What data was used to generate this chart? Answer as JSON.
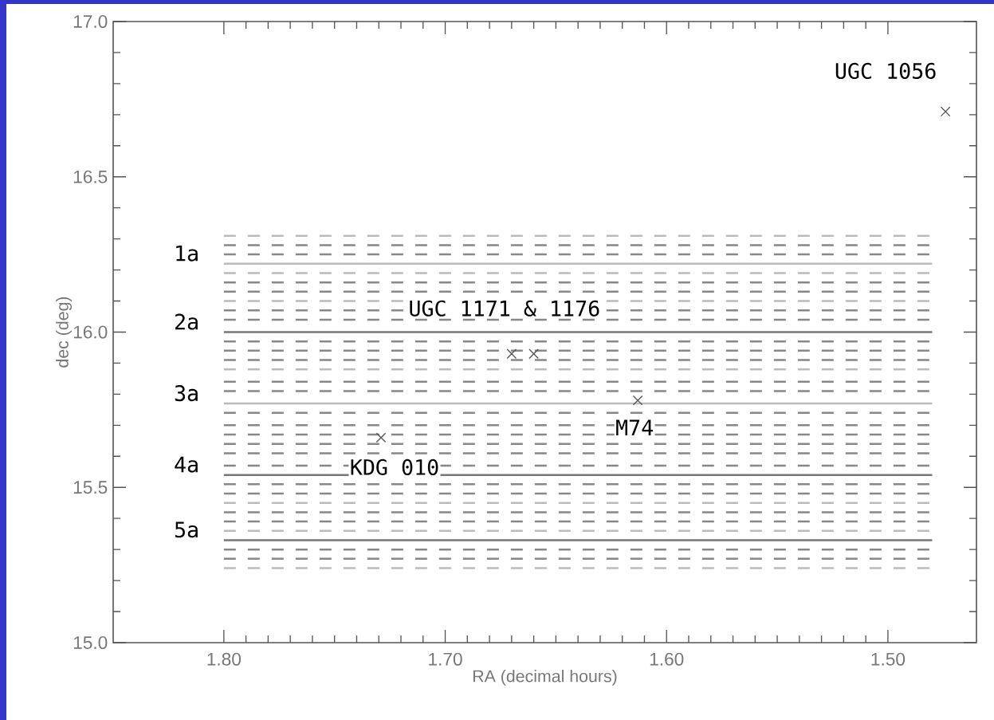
{
  "chart_data": {
    "type": "scatter",
    "xlabel": "RA (decimal hours)",
    "ylabel": "dec (deg)",
    "xlim": [
      1.85,
      1.46
    ],
    "ylim": [
      15.0,
      17.0
    ],
    "xticks": [
      {
        "value": 1.8,
        "label": "1.80"
      },
      {
        "value": 1.7,
        "label": "1.70"
      },
      {
        "value": 1.6,
        "label": "1.60"
      },
      {
        "value": 1.5,
        "label": "1.50"
      }
    ],
    "yticks": [
      {
        "value": 15.0,
        "label": "15.0"
      },
      {
        "value": 15.5,
        "label": "15.5"
      },
      {
        "value": 16.0,
        "label": "16.0"
      },
      {
        "value": 16.5,
        "label": "16.5"
      },
      {
        "value": 17.0,
        "label": "17.0"
      }
    ],
    "series": [
      {
        "marker": "cross",
        "color": "#555555",
        "x": [
          1.474,
          1.67,
          1.66,
          1.613,
          1.729
        ],
        "values": [
          16.71,
          15.93,
          15.93,
          15.78,
          15.66
        ]
      },
      {
        "type": "line",
        "name": "1a",
        "color": "#bbbbbb",
        "line_style": "solid",
        "x": [
          1.8,
          1.48
        ],
        "values": [
          16.22,
          16.22
        ]
      },
      {
        "type": "line",
        "name": "2a",
        "color": "#777777",
        "line_style": "solid",
        "x": [
          1.8,
          1.48
        ],
        "values": [
          16.0,
          16.0
        ]
      },
      {
        "type": "line",
        "name": "3a",
        "color": "#bbbbbb",
        "line_style": "solid",
        "x": [
          1.8,
          1.48
        ],
        "values": [
          15.77,
          15.77
        ]
      },
      {
        "type": "line",
        "name": "4a",
        "color": "#777777",
        "line_style": "solid",
        "x": [
          1.8,
          1.48
        ],
        "values": [
          15.54,
          15.54
        ]
      },
      {
        "type": "line",
        "name": "5a",
        "color": "#777777",
        "line_style": "solid",
        "x": [
          1.8,
          1.48
        ],
        "values": [
          15.33,
          15.33
        ]
      },
      {
        "type": "line",
        "color": "#bbbbbb",
        "line_style": "dashed",
        "x": [
          1.8,
          1.48
        ],
        "values": [
          16.31,
          16.31
        ]
      },
      {
        "type": "line",
        "color": "#888888",
        "line_style": "dashed",
        "x": [
          1.8,
          1.48
        ],
        "values": [
          16.28,
          16.28
        ]
      },
      {
        "type": "line",
        "color": "#888888",
        "line_style": "dashed",
        "x": [
          1.8,
          1.48
        ],
        "values": [
          16.25,
          16.25
        ]
      },
      {
        "type": "line",
        "color": "#bbbbbb",
        "line_style": "dashed",
        "x": [
          1.8,
          1.48
        ],
        "values": [
          16.19,
          16.19
        ]
      },
      {
        "type": "line",
        "color": "#888888",
        "line_style": "dashed",
        "x": [
          1.8,
          1.48
        ],
        "values": [
          16.16,
          16.16
        ]
      },
      {
        "type": "line",
        "color": "#888888",
        "line_style": "dashed",
        "x": [
          1.8,
          1.48
        ],
        "values": [
          16.13,
          16.13
        ]
      },
      {
        "type": "line",
        "color": "#bbbbbb",
        "line_style": "dashed",
        "x": [
          1.8,
          1.48
        ],
        "values": [
          16.1,
          16.1
        ]
      },
      {
        "type": "line",
        "color": "#888888",
        "line_style": "dashed",
        "x": [
          1.8,
          1.48
        ],
        "values": [
          16.07,
          16.07
        ]
      },
      {
        "type": "line",
        "color": "#888888",
        "line_style": "dashed",
        "x": [
          1.8,
          1.48
        ],
        "values": [
          16.04,
          16.04
        ]
      },
      {
        "type": "line",
        "color": "#888888",
        "line_style": "dashed",
        "x": [
          1.8,
          1.48
        ],
        "values": [
          15.97,
          15.97
        ]
      },
      {
        "type": "line",
        "color": "#888888",
        "line_style": "dashed",
        "x": [
          1.8,
          1.48
        ],
        "values": [
          15.94,
          15.94
        ]
      },
      {
        "type": "line",
        "color": "#888888",
        "line_style": "dashed",
        "x": [
          1.8,
          1.48
        ],
        "values": [
          15.91,
          15.91
        ]
      },
      {
        "type": "line",
        "color": "#bbbbbb",
        "line_style": "dashed",
        "x": [
          1.8,
          1.48
        ],
        "values": [
          15.88,
          15.88
        ]
      },
      {
        "type": "line",
        "color": "#888888",
        "line_style": "dashed",
        "x": [
          1.8,
          1.48
        ],
        "values": [
          15.84,
          15.84
        ]
      },
      {
        "type": "line",
        "color": "#888888",
        "line_style": "dashed",
        "x": [
          1.8,
          1.48
        ],
        "values": [
          15.81,
          15.81
        ]
      },
      {
        "type": "line",
        "color": "#888888",
        "line_style": "dashed",
        "x": [
          1.8,
          1.48
        ],
        "values": [
          15.74,
          15.74
        ]
      },
      {
        "type": "line",
        "color": "#888888",
        "line_style": "dashed",
        "x": [
          1.8,
          1.48
        ],
        "values": [
          15.7,
          15.7
        ]
      },
      {
        "type": "line",
        "color": "#888888",
        "line_style": "dashed",
        "x": [
          1.8,
          1.48
        ],
        "values": [
          15.67,
          15.67
        ]
      },
      {
        "type": "line",
        "color": "#888888",
        "line_style": "dashed",
        "x": [
          1.8,
          1.48
        ],
        "values": [
          15.64,
          15.64
        ]
      },
      {
        "type": "line",
        "color": "#888888",
        "line_style": "dashed",
        "x": [
          1.8,
          1.48
        ],
        "values": [
          15.61,
          15.61
        ]
      },
      {
        "type": "line",
        "color": "#888888",
        "line_style": "dashed",
        "x": [
          1.8,
          1.48
        ],
        "values": [
          15.57,
          15.57
        ]
      },
      {
        "type": "line",
        "color": "#888888",
        "line_style": "dashed",
        "x": [
          1.8,
          1.48
        ],
        "values": [
          15.51,
          15.51
        ]
      },
      {
        "type": "line",
        "color": "#888888",
        "line_style": "dashed",
        "x": [
          1.8,
          1.48
        ],
        "values": [
          15.48,
          15.48
        ]
      },
      {
        "type": "line",
        "color": "#bbbbbb",
        "line_style": "dashed",
        "x": [
          1.8,
          1.48
        ],
        "values": [
          15.45,
          15.45
        ]
      },
      {
        "type": "line",
        "color": "#888888",
        "line_style": "dashed",
        "x": [
          1.8,
          1.48
        ],
        "values": [
          15.42,
          15.42
        ]
      },
      {
        "type": "line",
        "color": "#888888",
        "line_style": "dashed",
        "x": [
          1.8,
          1.48
        ],
        "values": [
          15.39,
          15.39
        ]
      },
      {
        "type": "line",
        "color": "#bbbbbb",
        "line_style": "dashed",
        "x": [
          1.8,
          1.48
        ],
        "values": [
          15.36,
          15.36
        ]
      },
      {
        "type": "line",
        "color": "#888888",
        "line_style": "dashed",
        "x": [
          1.8,
          1.48
        ],
        "values": [
          15.3,
          15.3
        ]
      },
      {
        "type": "line",
        "color": "#888888",
        "line_style": "dashed",
        "x": [
          1.8,
          1.48
        ],
        "values": [
          15.27,
          15.27
        ]
      },
      {
        "type": "line",
        "color": "#bbbbbb",
        "line_style": "dashed",
        "x": [
          1.8,
          1.48
        ],
        "values": [
          15.24,
          15.24
        ]
      }
    ],
    "annotations": [
      {
        "text": "UGC 1056",
        "x": 1.474,
        "y": 16.71
      },
      {
        "text": "UGC 1171 & 1176",
        "x": 1.67,
        "y": 15.93
      },
      {
        "text": "M74",
        "x": 1.613,
        "y": 15.78
      },
      {
        "text": "KDG 010",
        "x": 1.729,
        "y": 15.66
      }
    ]
  }
}
